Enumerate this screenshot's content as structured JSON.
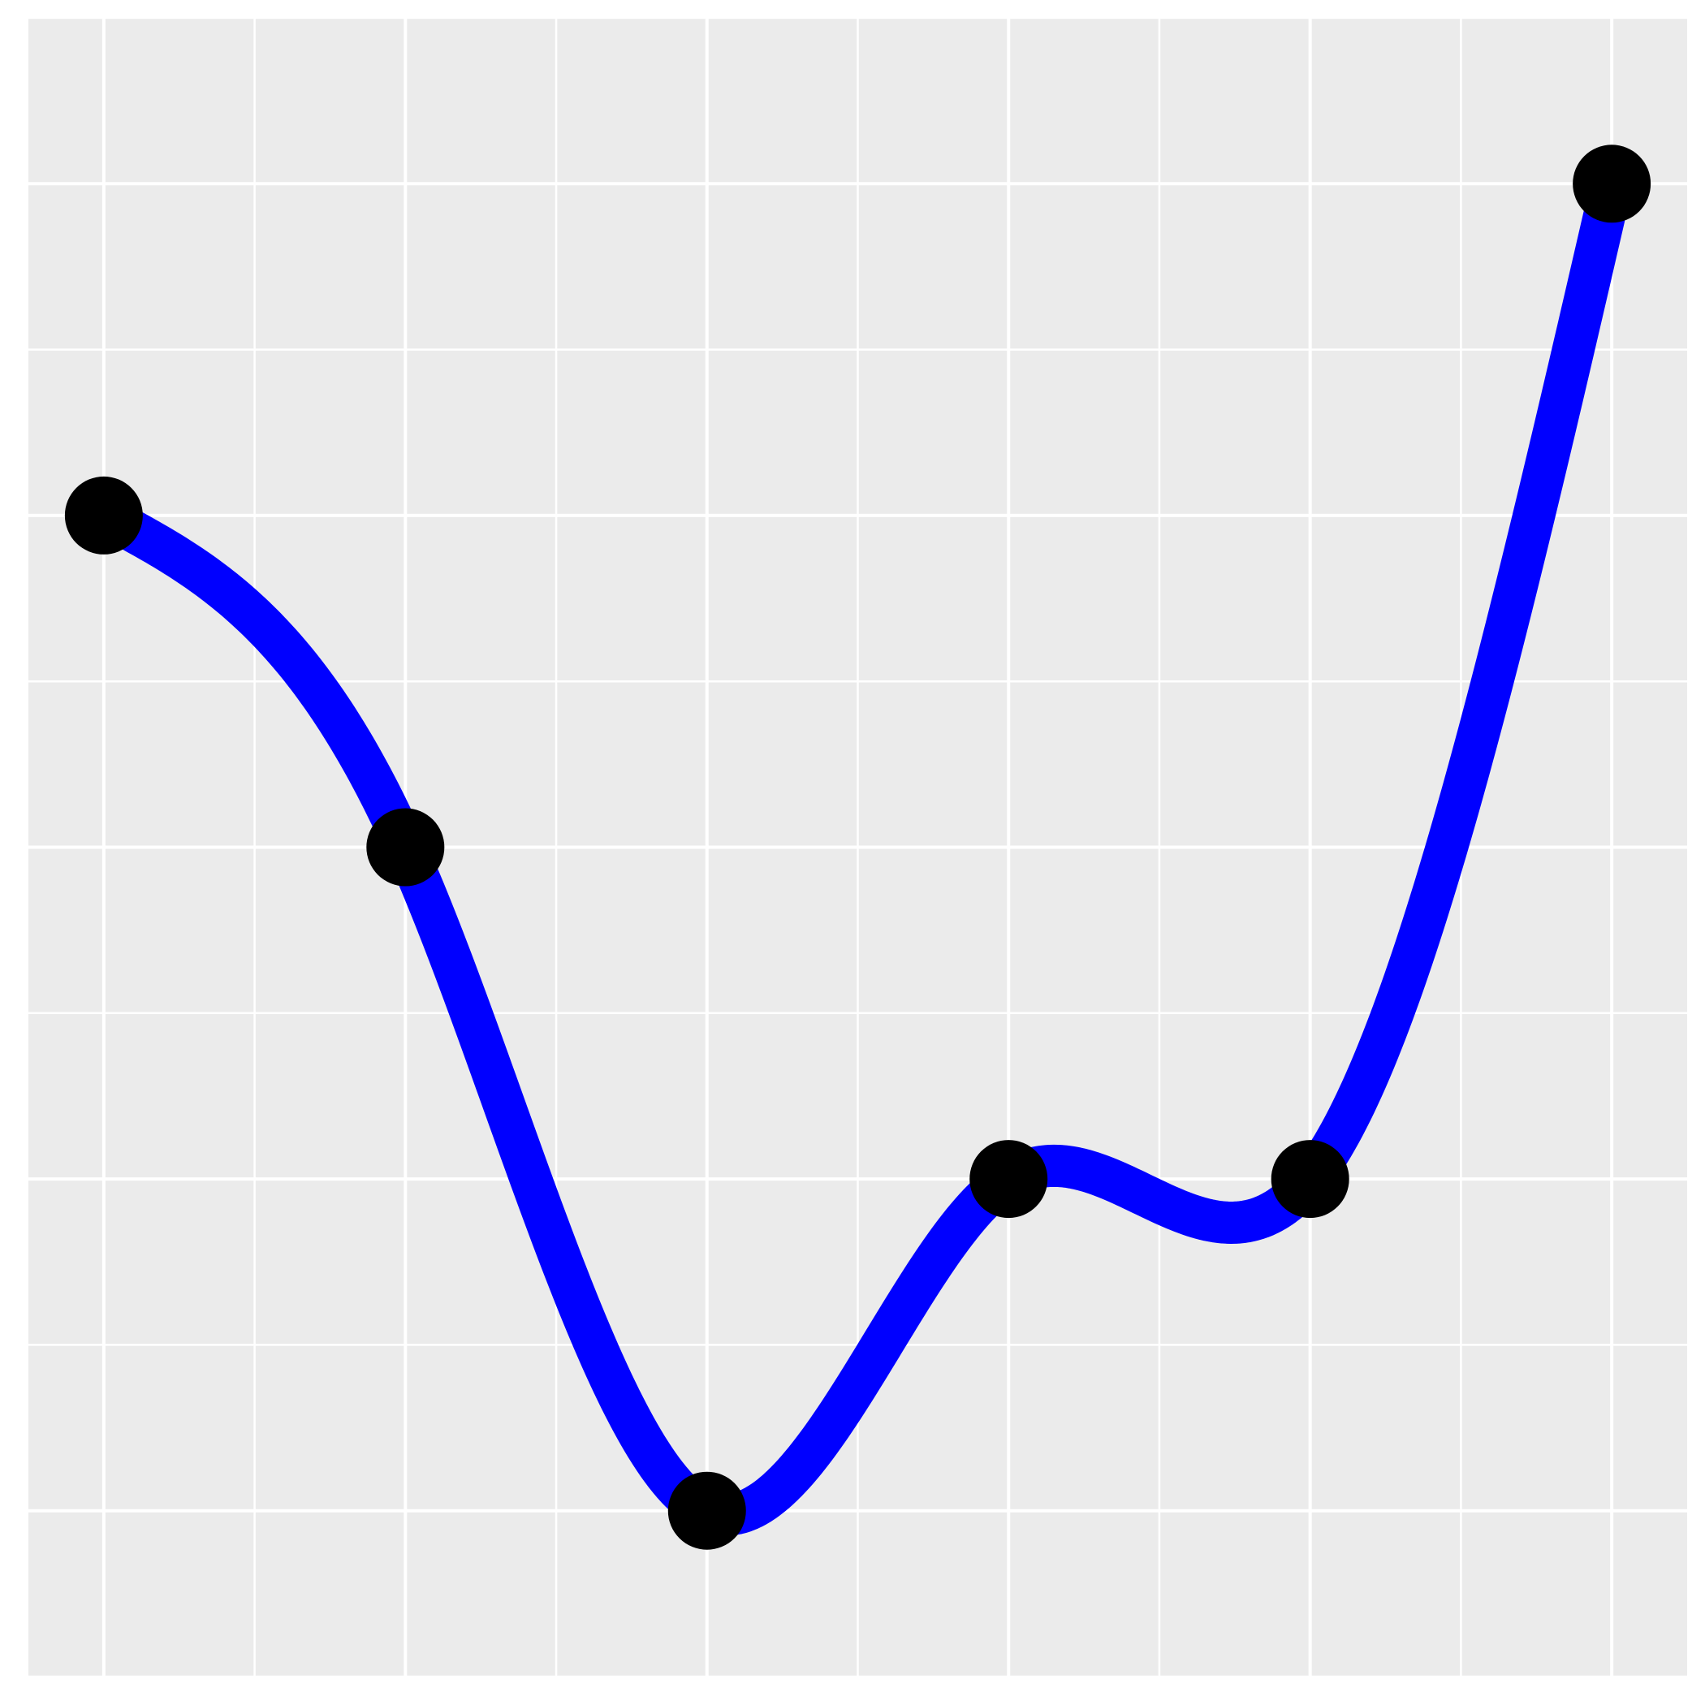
{
  "chart_data": {
    "type": "line",
    "title": "",
    "xlabel": "",
    "ylabel": "",
    "x": [
      1,
      2,
      3,
      4,
      5,
      6
    ],
    "series": [
      {
        "values": [
          5,
          4,
          2,
          3,
          3,
          6
        ],
        "color": "#0000ff",
        "smooth": true
      }
    ],
    "xlim": [
      0.75,
      6.25
    ],
    "ylim": [
      1.5,
      6.5
    ],
    "x_major_ticks": [
      1,
      2,
      3,
      4,
      5,
      6
    ],
    "x_minor_ticks": [
      1.5,
      2.5,
      3.5,
      4.5,
      5.5
    ],
    "y_major_ticks": [
      2,
      3,
      4,
      5,
      6
    ],
    "y_minor_ticks": [
      1.5,
      2.5,
      3.5,
      4.5,
      5.5,
      6.5
    ],
    "grid": true,
    "legend": "none",
    "colors": {
      "panel_background": "#ebebeb",
      "grid_line": "#ffffff",
      "line": "#0000ff",
      "points": "#000000"
    }
  }
}
